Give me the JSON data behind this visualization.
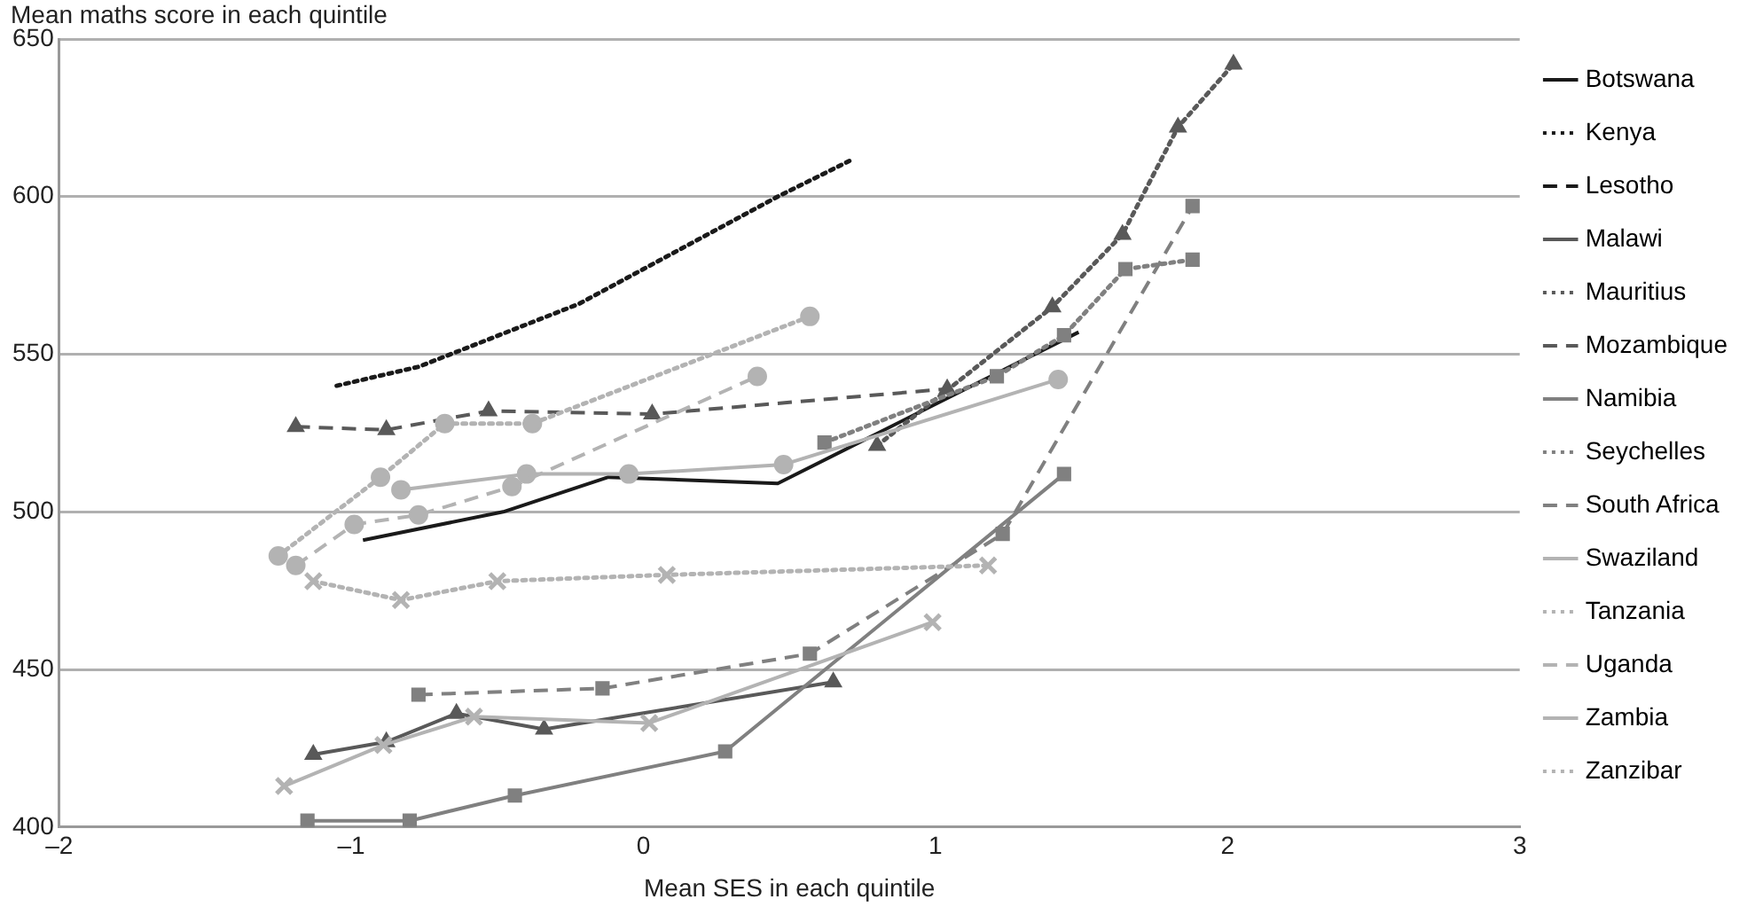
{
  "chart_data": {
    "type": "line",
    "ylabel": "Mean maths score in each quintile",
    "xlabel": "Mean SES in each quintile",
    "xlim": [
      -2,
      3
    ],
    "xticks": [
      {
        "value": -2,
        "label": "–2"
      },
      {
        "value": -1,
        "label": "–1"
      },
      0,
      1,
      2,
      3
    ],
    "ylim": [
      400,
      650
    ],
    "yticks": [
      400,
      450,
      500,
      550,
      600,
      650
    ],
    "grid": "y",
    "legend": "right",
    "series": [
      {
        "name": "Botswana",
        "color": "#1a1a1a",
        "line_style": "solid",
        "marker": "none",
        "x": [
          -0.96,
          -0.48,
          -0.12,
          0.46,
          1.49
        ],
        "values": [
          491,
          500,
          511,
          509,
          557
        ]
      },
      {
        "name": "Kenya",
        "color": "#1a1a1a",
        "line_style": "dotted",
        "marker": "none",
        "x": [
          -1.05,
          -0.77,
          -0.22,
          0.46,
          0.72
        ],
        "values": [
          540,
          546,
          566,
          600,
          612
        ]
      },
      {
        "name": "Lesotho",
        "color": "#1a1a1a",
        "line_style": "dashed",
        "marker": "none"
      },
      {
        "name": "Malawi",
        "color": "#595959",
        "line_style": "solid",
        "marker": "triangle",
        "x": [
          -1.13,
          -0.88,
          -0.64,
          -0.34,
          0.65
        ],
        "values": [
          423,
          427,
          436,
          431,
          446
        ]
      },
      {
        "name": "Mauritius",
        "color": "#595959",
        "line_style": "dotted",
        "marker": "triangle",
        "x": [
          0.8,
          1.4,
          1.64,
          1.83,
          2.02
        ],
        "values": [
          521,
          565,
          588,
          622,
          642
        ]
      },
      {
        "name": "Mozambique",
        "color": "#595959",
        "line_style": "dashed",
        "marker": "triangle",
        "x": [
          -1.19,
          -0.88,
          -0.53,
          0.03,
          1.04
        ],
        "values": [
          527,
          526,
          532,
          531,
          539
        ]
      },
      {
        "name": "Namibia",
        "color": "#808080",
        "line_style": "solid",
        "marker": "square",
        "x": [
          -1.15,
          -0.8,
          -0.44,
          0.28,
          1.44
        ],
        "values": [
          402,
          402,
          410,
          424,
          512
        ]
      },
      {
        "name": "Seychelles",
        "color": "#808080",
        "line_style": "dotted",
        "marker": "square",
        "x": [
          0.62,
          1.21,
          1.44,
          1.65,
          1.88
        ],
        "values": [
          522,
          543,
          556,
          577,
          580
        ]
      },
      {
        "name": "South Africa",
        "color": "#808080",
        "line_style": "dashed",
        "marker": "square",
        "x": [
          -0.77,
          -0.14,
          0.57,
          1.23,
          1.88
        ],
        "values": [
          442,
          444,
          455,
          493,
          597
        ]
      },
      {
        "name": "Swaziland",
        "color": "#b3b3b3",
        "line_style": "solid",
        "marker": "circle",
        "x": [
          -0.83,
          -0.4,
          -0.05,
          0.48,
          1.42
        ],
        "values": [
          507,
          512,
          512,
          515,
          542
        ]
      },
      {
        "name": "Tanzania",
        "color": "#b3b3b3",
        "line_style": "dotted",
        "marker": "circle",
        "x": [
          -1.25,
          -0.9,
          -0.68,
          -0.38,
          0.57
        ],
        "values": [
          486,
          511,
          528,
          528,
          562
        ]
      },
      {
        "name": "Uganda",
        "color": "#b3b3b3",
        "line_style": "dashed",
        "marker": "circle",
        "x": [
          -1.19,
          -0.99,
          -0.77,
          -0.45,
          0.39
        ],
        "values": [
          483,
          496,
          499,
          508,
          543
        ]
      },
      {
        "name": "Zambia",
        "color": "#b3b3b3",
        "line_style": "solid",
        "marker": "cross",
        "x": [
          -1.23,
          -0.89,
          -0.58,
          0.02,
          0.99
        ],
        "values": [
          413,
          426,
          435,
          433,
          465
        ]
      },
      {
        "name": "Zanzibar",
        "color": "#b3b3b3",
        "line_style": "dotted",
        "marker": "cross",
        "x": [
          -1.13,
          -0.83,
          -0.5,
          0.08,
          1.18
        ],
        "values": [
          478,
          472,
          478,
          480,
          483
        ]
      }
    ]
  }
}
